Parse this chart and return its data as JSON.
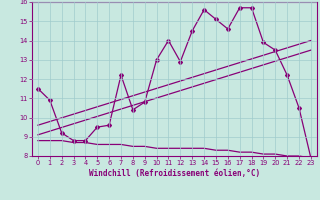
{
  "xlabel": "Windchill (Refroidissement éolien,°C)",
  "ylabel": "",
  "xlim": [
    -0.5,
    23.5
  ],
  "ylim": [
    8,
    16
  ],
  "x_ticks": [
    0,
    1,
    2,
    3,
    4,
    5,
    6,
    7,
    8,
    9,
    10,
    11,
    12,
    13,
    14,
    15,
    16,
    17,
    18,
    19,
    20,
    21,
    22,
    23
  ],
  "y_ticks": [
    8,
    9,
    10,
    11,
    12,
    13,
    14,
    15,
    16
  ],
  "background_color": "#c8e8e0",
  "grid_color": "#a0cccc",
  "line_color": "#880077",
  "line1_x": [
    0,
    1,
    2,
    3,
    4,
    5,
    6,
    7,
    8,
    9,
    10,
    11,
    12,
    13,
    14,
    15,
    16,
    17,
    18,
    19,
    20,
    21,
    22,
    23
  ],
  "line1_y": [
    11.5,
    10.9,
    9.2,
    8.8,
    8.8,
    9.5,
    9.6,
    12.2,
    10.4,
    10.8,
    13.0,
    14.0,
    12.9,
    14.5,
    15.6,
    15.1,
    14.6,
    15.7,
    15.7,
    13.9,
    13.5,
    12.2,
    10.5,
    7.9
  ],
  "line2_x": [
    0,
    23
  ],
  "line2_y": [
    9.6,
    14.0
  ],
  "line3_x": [
    0,
    23
  ],
  "line3_y": [
    9.1,
    13.5
  ],
  "line4_x": [
    0,
    1,
    2,
    3,
    4,
    5,
    6,
    7,
    8,
    9,
    10,
    11,
    12,
    13,
    14,
    15,
    16,
    17,
    18,
    19,
    20,
    21,
    22,
    23
  ],
  "line4_y": [
    8.8,
    8.8,
    8.8,
    8.7,
    8.7,
    8.6,
    8.6,
    8.6,
    8.5,
    8.5,
    8.4,
    8.4,
    8.4,
    8.4,
    8.4,
    8.3,
    8.3,
    8.2,
    8.2,
    8.1,
    8.1,
    8.0,
    8.0,
    7.9
  ]
}
